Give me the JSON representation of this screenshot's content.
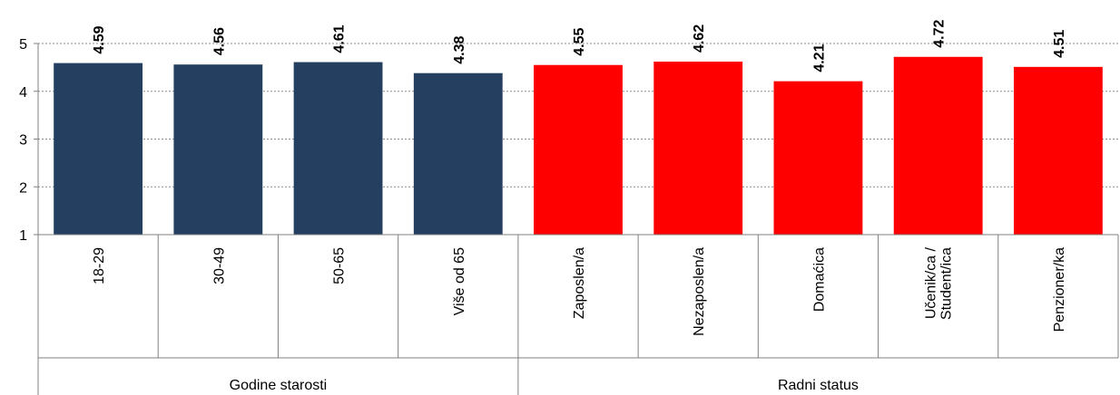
{
  "chart_data": {
    "type": "bar",
    "title": "",
    "xlabel": "",
    "ylabel": "",
    "ylim": [
      1,
      5
    ],
    "yticks": [
      "1",
      "2",
      "3",
      "4",
      "5"
    ],
    "grid": true,
    "groups": [
      {
        "name": "Godine starosti",
        "color": "#243f60",
        "categories": [
          "18-29",
          "30-49",
          "50-65",
          "Više od 65"
        ],
        "values": [
          4.59,
          4.56,
          4.61,
          4.38
        ],
        "labels": [
          "4.59",
          "4.56",
          "4.61",
          "4.38"
        ]
      },
      {
        "name": "Radni status",
        "color": "#ff0000",
        "categories": [
          "Zaposlen/a",
          "Nezaposlen/a",
          "Domaćica",
          "Učenik/ca / Student/ica",
          "Penzioner/ka"
        ],
        "values": [
          4.55,
          4.62,
          4.21,
          4.72,
          4.51
        ],
        "labels": [
          "4.55",
          "4.62",
          "4.21",
          "4.72",
          "4.51"
        ]
      }
    ]
  }
}
